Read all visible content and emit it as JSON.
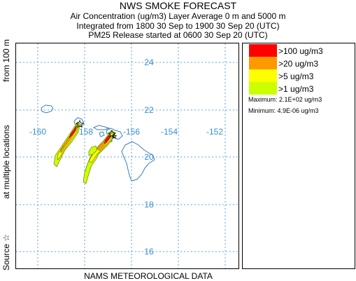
{
  "header": {
    "title": "NWS SMOKE FORECAST",
    "line2": "Air Concentration (ug/m3) Layer Average    0 m and  5000 m",
    "line3": "Integrated from 1800 30 Sep to 1900 30 Sep 20 (UTC)",
    "line4": "PM25 Release started at 0600 30 Sep 20 (UTC)"
  },
  "side_label": {
    "source": "Source ☆",
    "at": "at multiple locations",
    "from": "from  100 m"
  },
  "bottom_label": "NAMS METEOROLOGICAL DATA",
  "map": {
    "lon_labels": [
      "-160",
      "-158",
      "-156",
      "-154",
      "-152"
    ],
    "lat_labels": [
      "24",
      "22",
      "20",
      "18",
      "16"
    ],
    "grid_color": "#5aa0d8",
    "coast_color": "#3a7fb8"
  },
  "legend": {
    "items": [
      {
        "label": ">100 ug/m3",
        "color": "#ff0000"
      },
      {
        "label": ">20 ug/m3",
        "color": "#ff9900"
      },
      {
        "label": ">5 ug/m3",
        "color": "#ffff00"
      },
      {
        "label": ">1 ug/m3",
        "color": "#ccff00"
      }
    ],
    "maximum": "Maximum: 2.1E+02 ug/m3",
    "minimum": "Minimum: 4.9E-06 ug/m3"
  }
}
